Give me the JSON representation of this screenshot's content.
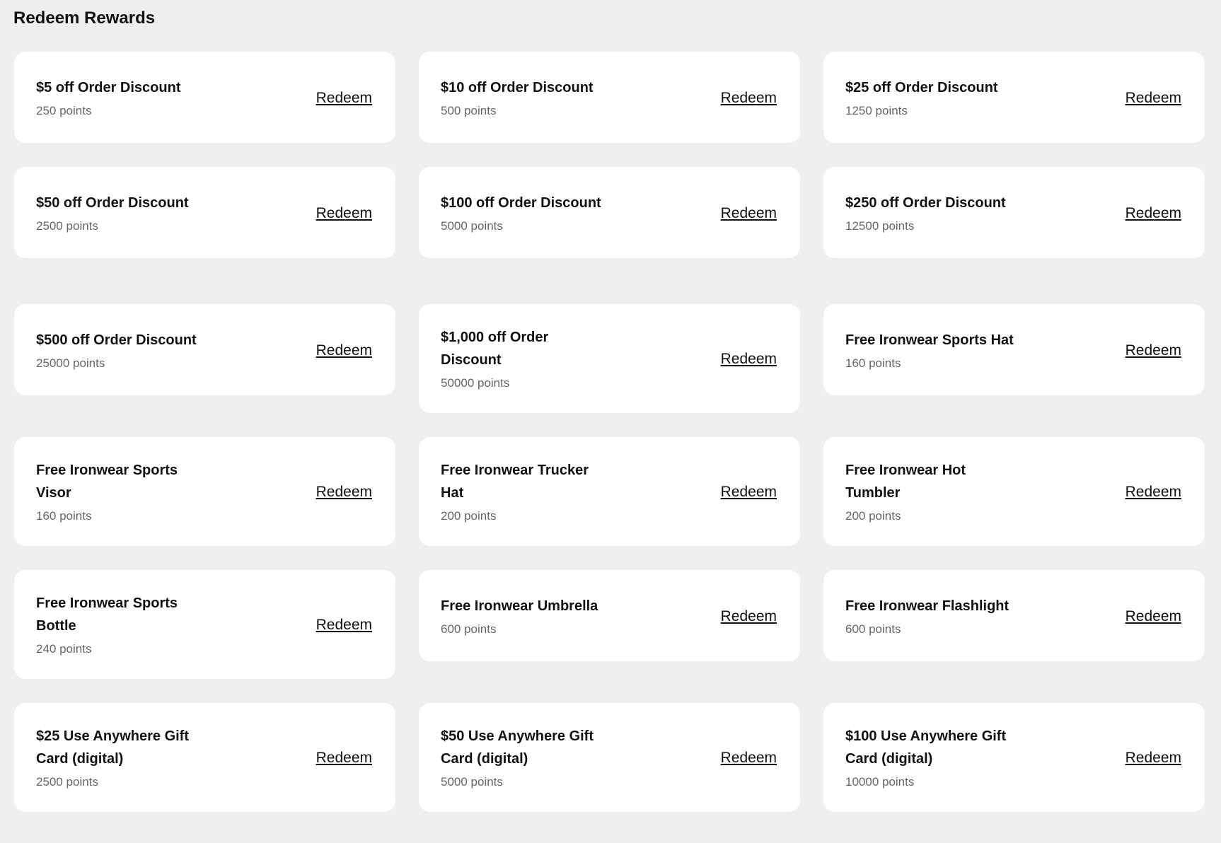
{
  "page": {
    "title": "Redeem Rewards"
  },
  "redeem_label": "Redeem",
  "rewards": [
    {
      "title": "$5 off Order Discount",
      "points": "250 points"
    },
    {
      "title": "$10 off Order Discount",
      "points": "500 points"
    },
    {
      "title": "$25 off Order Discount",
      "points": "1250 points"
    },
    {
      "title": "$50 off Order Discount",
      "points": "2500 points"
    },
    {
      "title": "$100 off Order Discount",
      "points": "5000 points"
    },
    {
      "title": "$250 off Order Discount",
      "points": "12500 points"
    },
    {
      "title": "$500 off Order Discount",
      "points": "25000 points"
    },
    {
      "title": "$1,000 off Order\nDiscount",
      "points": "50000 points"
    },
    {
      "title": "Free Ironwear Sports Hat",
      "points": "160 points"
    },
    {
      "title": "Free Ironwear Sports\nVisor",
      "points": "160 points"
    },
    {
      "title": "Free Ironwear Trucker\nHat",
      "points": "200 points"
    },
    {
      "title": "Free Ironwear Hot\nTumbler",
      "points": "200 points"
    },
    {
      "title": "Free Ironwear Sports\nBottle",
      "points": "240 points"
    },
    {
      "title": "Free Ironwear Umbrella",
      "points": "600 points"
    },
    {
      "title": "Free Ironwear Flashlight",
      "points": "600 points"
    },
    {
      "title": "$25 Use Anywhere Gift\nCard (digital)",
      "points": "2500 points"
    },
    {
      "title": "$50 Use Anywhere Gift\nCard (digital)",
      "points": "5000 points"
    },
    {
      "title": "$100 Use Anywhere Gift\nCard (digital)",
      "points": "10000 points"
    }
  ]
}
